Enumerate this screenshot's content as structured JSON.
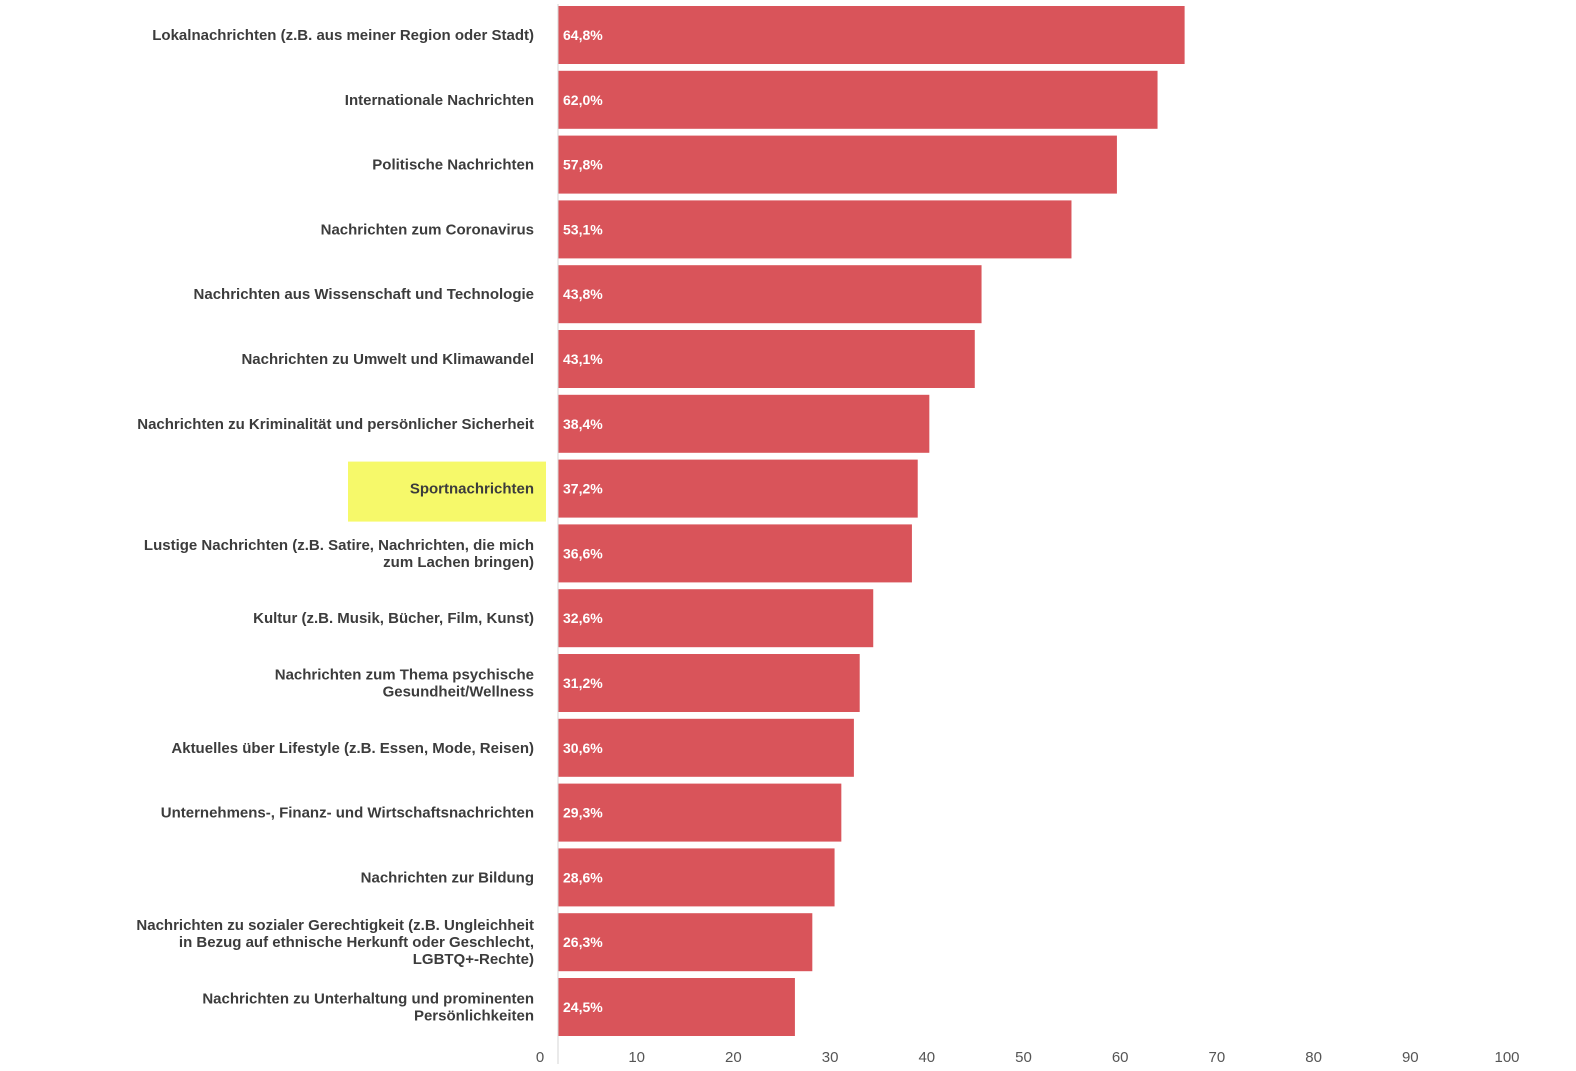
{
  "chart_data": {
    "type": "bar",
    "orientation": "horizontal",
    "categories": [
      "Lokalnachrichten (z.B. aus meiner Region oder Stadt)",
      "Internationale Nachrichten",
      "Politische Nachrichten",
      "Nachrichten zum Coronavirus",
      "Nachrichten aus Wissenschaft und Technologie",
      "Nachrichten zu Umwelt und Klimawandel",
      "Nachrichten zu Kriminalität und persönlicher Sicherheit",
      "Sportnachrichten",
      "Lustige Nachrichten (z.B. Satire, Nachrichten, die mich zum Lachen bringen)",
      "Kultur (z.B. Musik, Bücher, Film, Kunst)",
      "Nachrichten zum Thema psychische Gesundheit/Wellness",
      "Aktuelles über Lifestyle (z.B. Essen, Mode, Reisen)",
      "Unternehmens-, Finanz- und Wirtschaftsnachrichten",
      "Nachrichten zur Bildung",
      "Nachrichten zu sozialer Gerechtigkeit (z.B. Ungleichheit in Bezug auf ethnische Herkunft oder Geschlecht, LGBTQ+-Rechte)",
      "Nachrichten zu Unterhaltung und prominenten Persönlichkeiten"
    ],
    "category_lines": [
      [
        "Lokalnachrichten (z.B. aus meiner Region oder Stadt)"
      ],
      [
        "Internationale Nachrichten"
      ],
      [
        "Politische Nachrichten"
      ],
      [
        "Nachrichten zum Coronavirus"
      ],
      [
        "Nachrichten aus Wissenschaft und Technologie"
      ],
      [
        "Nachrichten zu Umwelt und Klimawandel"
      ],
      [
        "Nachrichten zu Kriminalität und persönlicher Sicherheit"
      ],
      [
        "Sportnachrichten"
      ],
      [
        "Lustige Nachrichten (z.B. Satire, Nachrichten, die mich",
        "zum Lachen bringen)"
      ],
      [
        "Kultur (z.B. Musik, Bücher, Film, Kunst)"
      ],
      [
        "Nachrichten zum Thema psychische",
        "Gesundheit/Wellness"
      ],
      [
        "Aktuelles über Lifestyle (z.B. Essen, Mode, Reisen)"
      ],
      [
        "Unternehmens-, Finanz- und Wirtschaftsnachrichten"
      ],
      [
        "Nachrichten zur Bildung"
      ],
      [
        "Nachrichten zu sozialer Gerechtigkeit (z.B. Ungleichheit",
        "in Bezug auf ethnische Herkunft oder Geschlecht,",
        "LGBTQ+-Rechte)"
      ],
      [
        "Nachrichten zu Unterhaltung und prominenten",
        "Persönlichkeiten"
      ]
    ],
    "values": [
      64.8,
      62.0,
      57.8,
      53.1,
      43.8,
      43.1,
      38.4,
      37.2,
      36.6,
      32.6,
      31.2,
      30.6,
      29.3,
      28.6,
      26.3,
      24.5
    ],
    "value_labels": [
      "64,8%",
      "62,0%",
      "57,8%",
      "53,1%",
      "43,8%",
      "43,1%",
      "38,4%",
      "37,2%",
      "36,6%",
      "32,6%",
      "31,2%",
      "30,6%",
      "29,3%",
      "28,6%",
      "26,3%",
      "24,5%"
    ],
    "xlim": [
      0,
      100
    ],
    "xticks": [
      "0",
      "10",
      "20",
      "30",
      "40",
      "50",
      "60",
      "70",
      "80",
      "90",
      "100"
    ],
    "highlighted_category_index": 7,
    "title": "",
    "xlabel": "",
    "ylabel": "",
    "grid": false,
    "legend": "none",
    "colors": {
      "bar": "#d9545a",
      "highlight": "#f6f96a",
      "highlight_text": "#a9ab45",
      "category_text": "#3c3c3c",
      "value_text": "#ffffff",
      "tick_text": "#555555",
      "axis_line": "#d6d6d6"
    }
  }
}
